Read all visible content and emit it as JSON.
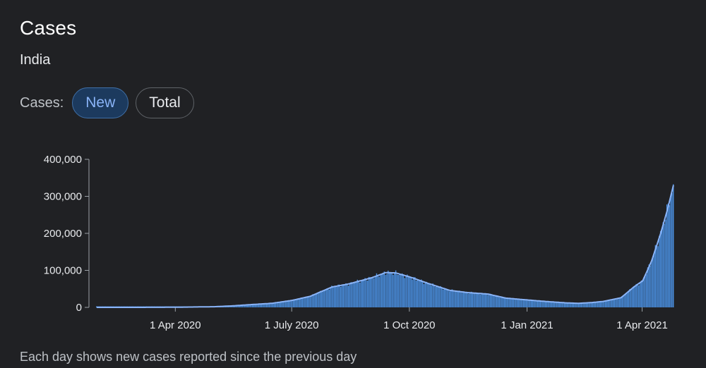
{
  "header": {
    "title": "Cases",
    "location": "India"
  },
  "toggle": {
    "label": "Cases:",
    "options": [
      {
        "label": "New",
        "selected": true
      },
      {
        "label": "Total",
        "selected": false
      }
    ]
  },
  "footnote": "Each day shows new cases reported since the previous day",
  "colors": {
    "bar": "#4a90e2",
    "line": "#8ab4f8",
    "selected_chip_bg": "#1c3a5e",
    "selected_chip_text": "#8ab4f8",
    "background": "#202124"
  },
  "chart_data": {
    "type": "bar",
    "overlay": "line (7-day average)",
    "ylim": [
      0,
      400000
    ],
    "y_ticks": [
      {
        "value": 0,
        "label": "0"
      },
      {
        "value": 100000,
        "label": "100,000"
      },
      {
        "value": 200000,
        "label": "200,000"
      },
      {
        "value": 300000,
        "label": "300,000"
      },
      {
        "value": 400000,
        "label": "400,000"
      }
    ],
    "x_range": [
      "2020-01-30",
      "2021-04-25"
    ],
    "x_ticks": [
      {
        "date": "2020-04-01",
        "label": "1 Apr 2020"
      },
      {
        "date": "2020-07-01",
        "label": "1 July 2020"
      },
      {
        "date": "2020-10-01",
        "label": "1 Oct 2020"
      },
      {
        "date": "2021-01-01",
        "label": "1 Jan 2021"
      },
      {
        "date": "2021-04-01",
        "label": "1 Apr 2021"
      }
    ],
    "series_points": [
      {
        "date": "2020-01-30",
        "value": 0
      },
      {
        "date": "2020-03-01",
        "value": 0
      },
      {
        "date": "2020-04-01",
        "value": 400
      },
      {
        "date": "2020-05-01",
        "value": 1800
      },
      {
        "date": "2020-05-15",
        "value": 4000
      },
      {
        "date": "2020-06-01",
        "value": 8000
      },
      {
        "date": "2020-06-15",
        "value": 11000
      },
      {
        "date": "2020-07-01",
        "value": 19000
      },
      {
        "date": "2020-07-15",
        "value": 30000
      },
      {
        "date": "2020-08-01",
        "value": 55000
      },
      {
        "date": "2020-08-15",
        "value": 64000
      },
      {
        "date": "2020-09-01",
        "value": 80000
      },
      {
        "date": "2020-09-12",
        "value": 94000
      },
      {
        "date": "2020-09-20",
        "value": 93000
      },
      {
        "date": "2020-10-01",
        "value": 82000
      },
      {
        "date": "2020-10-15",
        "value": 65000
      },
      {
        "date": "2020-11-01",
        "value": 46000
      },
      {
        "date": "2020-11-15",
        "value": 40000
      },
      {
        "date": "2020-12-01",
        "value": 36000
      },
      {
        "date": "2020-12-15",
        "value": 25000
      },
      {
        "date": "2021-01-01",
        "value": 20000
      },
      {
        "date": "2021-01-15",
        "value": 16000
      },
      {
        "date": "2021-02-01",
        "value": 12000
      },
      {
        "date": "2021-02-10",
        "value": 11000
      },
      {
        "date": "2021-02-20",
        "value": 13000
      },
      {
        "date": "2021-03-01",
        "value": 16000
      },
      {
        "date": "2021-03-15",
        "value": 26000
      },
      {
        "date": "2021-03-25",
        "value": 55000
      },
      {
        "date": "2021-04-01",
        "value": 72000
      },
      {
        "date": "2021-04-08",
        "value": 126000
      },
      {
        "date": "2021-04-15",
        "value": 200000
      },
      {
        "date": "2021-04-20",
        "value": 260000
      },
      {
        "date": "2021-04-25",
        "value": 330000
      }
    ]
  }
}
